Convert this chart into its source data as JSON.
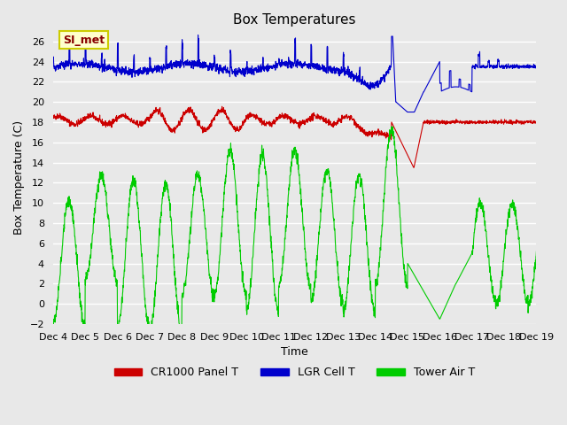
{
  "title": "Box Temperatures",
  "xlabel": "Time",
  "ylabel": "Box Temperature (C)",
  "ylim": [
    -2,
    27
  ],
  "xlim": [
    0,
    15
  ],
  "yticks": [
    -2,
    0,
    2,
    4,
    6,
    8,
    10,
    12,
    14,
    16,
    18,
    20,
    22,
    24,
    26
  ],
  "xtick_labels": [
    "Dec 4",
    "Dec 5",
    "Dec 6",
    "Dec 7",
    "Dec 8",
    "Dec 9",
    "Dec 10",
    "Dec 11",
    "Dec 12",
    "Dec 13",
    "Dec 14",
    "Dec 15",
    "Dec 16",
    "Dec 17",
    "Dec 18",
    "Dec 19"
  ],
  "bg_color": "#e8e8e8",
  "plot_bg_color": "#e8e8e8",
  "grid_color": "#ffffff",
  "legend_labels": [
    "CR1000 Panel T",
    "LGR Cell T",
    "Tower Air T"
  ],
  "legend_colors": [
    "#cc0000",
    "#0000cc",
    "#00cc00"
  ],
  "annotation_text": "SI_met",
  "annotation_bg": "#ffffcc",
  "annotation_border": "#cccc00",
  "annotation_text_color": "#880000"
}
